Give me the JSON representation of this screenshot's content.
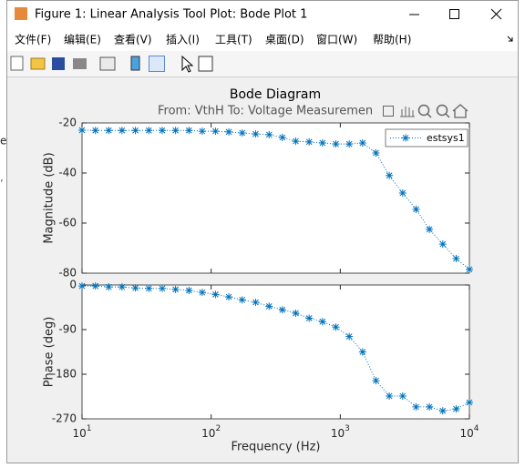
{
  "window": {
    "title": "Figure 1: Linear Analysis Tool Plot: Bode Plot 1"
  },
  "menu": [
    "文件(F)",
    "编辑(E)",
    "查看(V)",
    "插入(I)",
    "工具(T)",
    "桌面(D)",
    "窗口(W)",
    "帮助(H)"
  ],
  "background_text": [
    "e)",
    ","
  ],
  "chart_data": [
    {
      "type": "line",
      "title": "Bode Diagram",
      "subtitle": "From: VthH  To: Voltage Measuremen",
      "ylabel": "Magnitude (dB)",
      "log_x": true,
      "legend": "upper right",
      "xlim": [
        10,
        10000
      ],
      "xticks": [
        10,
        100,
        1000,
        10000
      ],
      "ylim": [
        -80,
        -20
      ],
      "yticks": [
        -80,
        -60,
        -40,
        -20
      ],
      "x": [
        10,
        12.7,
        16.1,
        20.4,
        25.9,
        32.9,
        41.8,
        53.0,
        67.3,
        85.3,
        108,
        137,
        174,
        221,
        281,
        356,
        452,
        574,
        728,
        924,
        1173,
        1489,
        1889,
        2398,
        3043,
        3862,
        4901,
        6220,
        7894,
        10000
      ],
      "series": [
        {
          "name": "estsys1",
          "color": "#0072bd",
          "values": [
            -22.9,
            -23,
            -23,
            -23,
            -23,
            -23,
            -23,
            -23,
            -23,
            -23.3,
            -23.3,
            -23.6,
            -24,
            -24.4,
            -24.7,
            -25.8,
            -27.3,
            -27.6,
            -28,
            -28.4,
            -28.4,
            -28,
            -32,
            -41,
            -48,
            -54.5,
            -62.5,
            -68.4,
            -74.2,
            -78.5
          ]
        }
      ]
    },
    {
      "type": "line",
      "ylabel": "Phase (deg)",
      "xlabel": "Frequency  (Hz)",
      "log_x": true,
      "xlim": [
        10,
        10000
      ],
      "xticks": [
        {
          "value": 10,
          "label": "10^1"
        },
        {
          "value": 100,
          "label": "10^2"
        },
        {
          "value": 1000,
          "label": "10^3"
        },
        {
          "value": 10000,
          "label": "10^4"
        }
      ],
      "ylim": [
        -270,
        0
      ],
      "yticks": [
        -270,
        -180,
        -90,
        0
      ],
      "x": [
        10,
        12.7,
        16.1,
        20.4,
        25.9,
        32.9,
        41.8,
        53.0,
        67.3,
        85.3,
        108,
        137,
        174,
        221,
        281,
        356,
        452,
        574,
        728,
        924,
        1173,
        1489,
        1889,
        2398,
        3043,
        3862,
        4901,
        6220,
        7894,
        10000
      ],
      "series": [
        {
          "name": "estsys1",
          "color": "#0072bd",
          "values": [
            -2,
            -2,
            -4,
            -4,
            -6,
            -7,
            -7,
            -9,
            -11,
            -15,
            -19,
            -24,
            -30,
            -35,
            -43,
            -50,
            -57,
            -67,
            -74,
            -85,
            -104,
            -135,
            -193,
            -224,
            -224,
            -246,
            -246,
            -254,
            -250,
            -237
          ]
        }
      ]
    }
  ]
}
